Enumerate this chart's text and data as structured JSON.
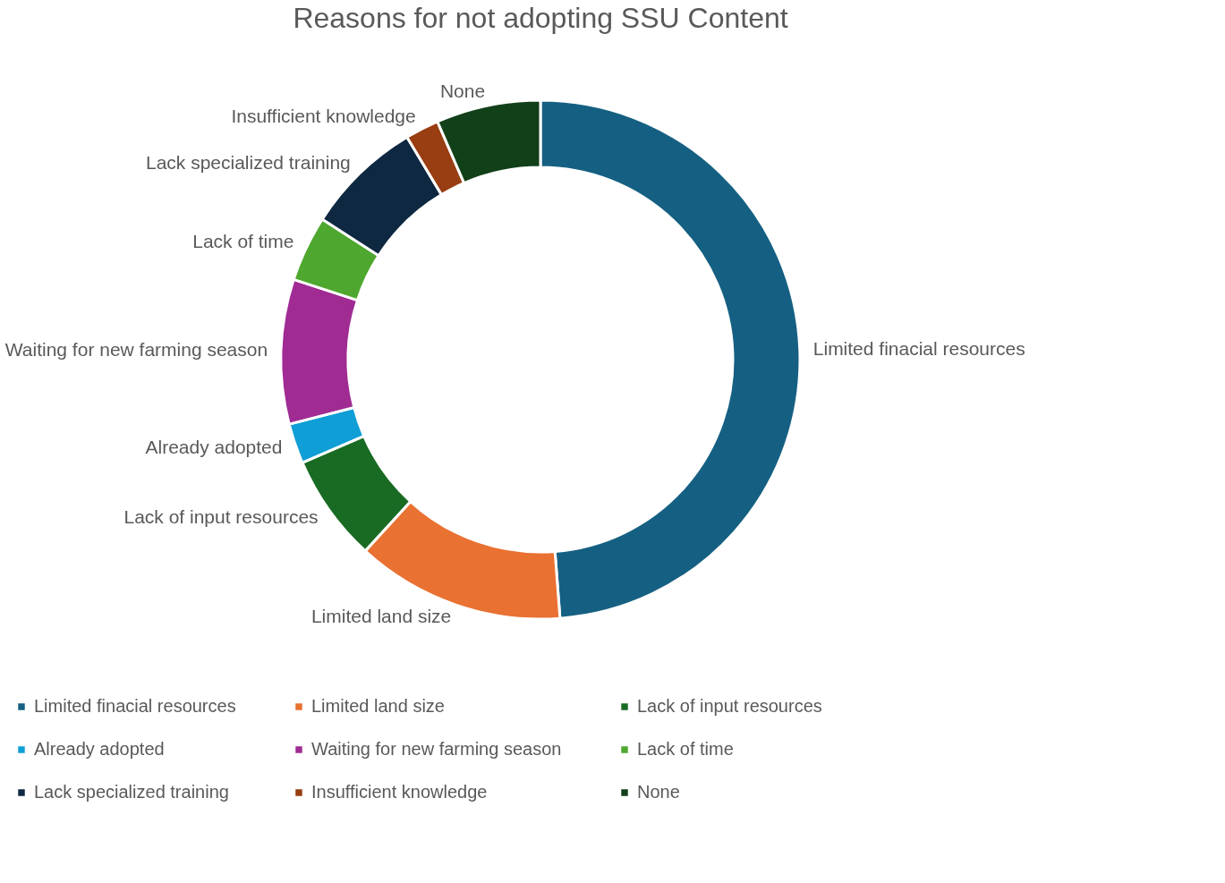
{
  "chart_data": {
    "type": "donut",
    "title": "Reasons for not adopting SSU Content",
    "categories": [
      "Limited finacial resources",
      "Limited land size",
      "Lack of input resources",
      "Already adopted",
      "Waiting for new farming season",
      "Lack of time",
      "Lack specialized training",
      "Insufficient knowledge",
      "None"
    ],
    "values": [
      48.8,
      13,
      6.7,
      2.5,
      9,
      4.1,
      7.3,
      2.1,
      6.5
    ],
    "colors": [
      "#156082",
      "#e97132",
      "#196b24",
      "#0f9ed5",
      "#a02b93",
      "#4ea72e",
      "#0e2841",
      "#993d12",
      "#124019"
    ],
    "legend": "bottom"
  }
}
